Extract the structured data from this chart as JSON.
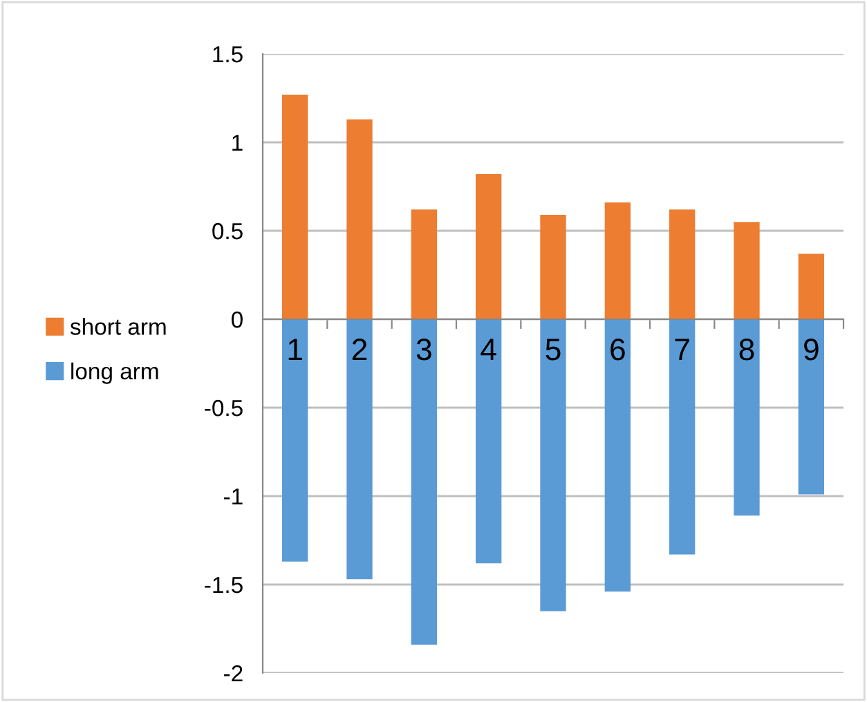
{
  "chart_data": {
    "type": "bar",
    "stacked": true,
    "categories": [
      "1",
      "2",
      "3",
      "4",
      "5",
      "6",
      "7",
      "8",
      "9"
    ],
    "series": [
      {
        "name": "short arm",
        "color": "#ed7d31",
        "values": [
          1.27,
          1.13,
          0.62,
          0.82,
          0.59,
          0.66,
          0.62,
          0.55,
          0.37
        ]
      },
      {
        "name": "long arm",
        "color": "#5b9bd5",
        "values": [
          -1.37,
          -1.47,
          -1.84,
          -1.38,
          -1.65,
          -1.54,
          -1.33,
          -1.11,
          -0.99
        ]
      }
    ],
    "ylim": [
      -2,
      1.5
    ],
    "yticks": [
      -2,
      -1.5,
      -1,
      -0.5,
      0,
      0.5,
      1,
      1.5
    ],
    "grid": "y",
    "legend": "left"
  }
}
